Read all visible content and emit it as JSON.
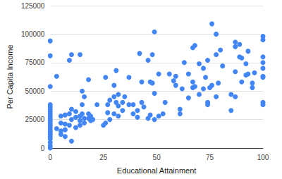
{
  "chart_data": {
    "type": "scatter",
    "x_label": "Educational Attainment",
    "y_label": "Per Capita Income",
    "color": "#4285f4",
    "marker": "circle",
    "grid": true,
    "xlim": [
      0,
      100
    ],
    "xticks": [
      0,
      25,
      50,
      75,
      100
    ],
    "ylim": [
      0,
      125000
    ],
    "yticks": [
      0,
      25000,
      50000,
      75000,
      100000,
      125000
    ],
    "x": [
      0,
      0,
      0,
      0,
      0,
      0,
      0,
      0,
      0,
      0,
      0,
      0,
      0,
      0,
      0,
      0,
      0,
      0,
      0,
      0,
      0,
      0,
      3,
      3,
      5,
      5,
      5,
      5,
      7,
      7,
      7,
      7,
      9,
      9,
      9,
      10,
      10,
      10,
      10,
      12,
      12,
      12,
      14,
      14,
      14,
      14,
      15,
      15,
      15,
      16,
      16,
      16,
      18,
      18,
      18,
      19,
      19,
      20,
      22,
      25,
      26,
      26,
      27,
      27,
      28,
      28,
      30,
      30,
      30,
      31,
      31,
      32,
      32,
      32,
      34,
      34,
      35,
      37,
      37,
      39,
      39,
      41,
      41,
      42,
      43,
      43,
      44,
      46,
      46,
      47,
      47,
      48,
      48,
      49,
      49,
      49,
      51,
      51,
      53,
      54,
      56,
      58,
      59,
      59,
      61,
      61,
      62,
      63,
      65,
      65,
      67,
      67,
      67,
      68,
      68,
      70,
      70,
      72,
      72,
      73,
      74,
      74,
      74,
      75,
      76,
      76,
      78,
      78,
      78,
      79,
      80,
      81,
      85,
      85,
      87,
      87,
      87,
      87,
      89,
      89,
      90,
      90,
      92,
      92,
      93,
      93,
      95,
      95,
      96,
      100,
      100,
      100,
      100,
      100,
      100,
      100,
      100,
      100
    ],
    "values": [
      94000,
      81000,
      54000,
      38000,
      36000,
      34000,
      32000,
      30000,
      28000,
      26000,
      24000,
      22000,
      20000,
      18000,
      16000,
      14000,
      12000,
      10000,
      8000,
      5000,
      2000,
      0,
      63000,
      17000,
      28000,
      22000,
      15000,
      12000,
      29000,
      21000,
      16000,
      10000,
      30000,
      20000,
      77000,
      82000,
      34000,
      25000,
      6000,
      27000,
      32000,
      18000,
      82000,
      28000,
      24000,
      20000,
      50000,
      38000,
      30000,
      45000,
      26000,
      22000,
      60000,
      30000,
      26000,
      28000,
      24000,
      25000,
      38000,
      20000,
      22000,
      62000,
      31000,
      38000,
      42000,
      25000,
      45000,
      30000,
      55000,
      68000,
      40000,
      47000,
      37000,
      28000,
      40000,
      33000,
      45000,
      62000,
      38000,
      38000,
      30000,
      33000,
      27000,
      83000,
      58000,
      40000,
      36000,
      77000,
      26000,
      58000,
      29000,
      82000,
      57000,
      102000,
      48000,
      25000,
      65000,
      28000,
      30000,
      40000,
      65000,
      59000,
      55000,
      63000,
      30000,
      34000,
      52000,
      75000,
      65000,
      44000,
      88000,
      53000,
      58000,
      90000,
      54000,
      74000,
      47000,
      70000,
      52000,
      62000,
      77000,
      38000,
      40000,
      53000,
      109000,
      55000,
      82000,
      45000,
      100000,
      57000,
      86000,
      72000,
      47000,
      33000,
      89000,
      93000,
      67000,
      45000,
      91000,
      80000,
      58000,
      79000,
      74000,
      64000,
      65000,
      85000,
      57000,
      53000,
      66000,
      98000,
      95000,
      80000,
      75000,
      70000,
      62000,
      63000,
      40000,
      38000
    ]
  }
}
